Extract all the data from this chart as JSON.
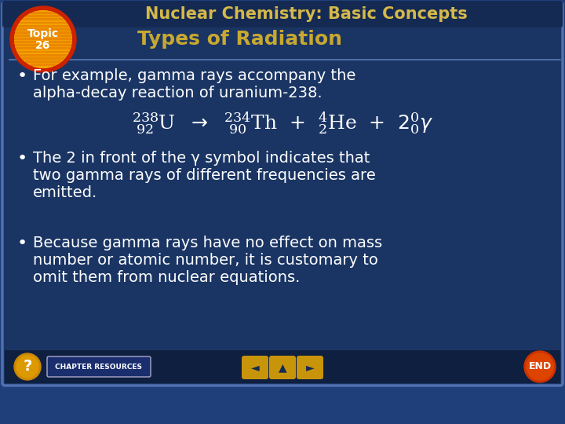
{
  "title": "Nuclear Chemistry: Basic Concepts",
  "subtitle": "Types of Radiation",
  "bullet1_line1": "For example, gamma rays accompany the",
  "bullet1_line2": "alpha-decay reaction of uranium-238.",
  "bullet2_line1": "The 2 in front of the γ symbol indicates that",
  "bullet2_line2": "two gamma rays of different frequencies are",
  "bullet2_line3": "emitted.",
  "bullet3_line1": "Because gamma rays have no effect on mass",
  "bullet3_line2": "number or atomic number, it is customary to",
  "bullet3_line3": "omit them from nuclear equations.",
  "bg_outer": "#1e3f7a",
  "bg_main": "#1a3564",
  "bg_dark": "#152a52",
  "title_color": "#d4b84a",
  "subtitle_color": "#c8a830",
  "text_color": "#ffffff",
  "circle_red": "#cc2200",
  "circle_orange": "#f5a800",
  "bottom_dark": "#0f1f40",
  "chapter_btn_color": "#1a2e6e",
  "nav_btn_color": "#c8940a",
  "end_btn_color": "#cc3300"
}
